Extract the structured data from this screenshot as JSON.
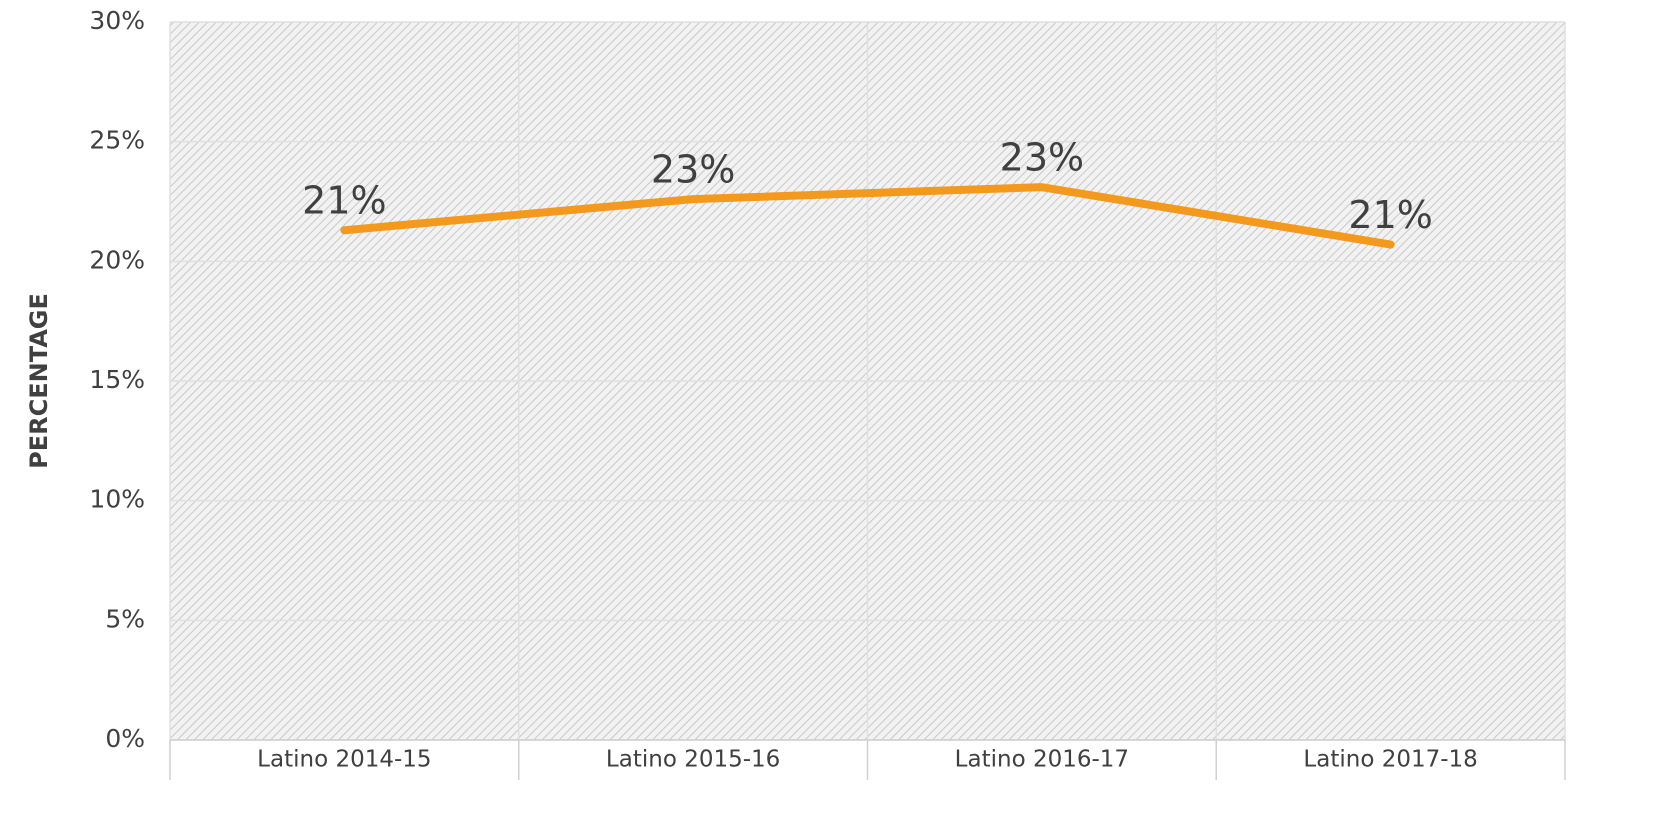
{
  "chart_data": {
    "type": "line",
    "y_axis_label": "PERCENTAGE",
    "categories": [
      "Latino 2014-15",
      "Latino 2015-16",
      "Latino 2016-17",
      "Latino 2017-18"
    ],
    "values": [
      21.3,
      22.6,
      23.1,
      20.7
    ],
    "value_labels": [
      "21%",
      "23%",
      "23%",
      "21%"
    ],
    "color": "#f39a1e",
    "ylim": [
      0,
      30
    ],
    "yticks": [
      {
        "value": 0,
        "label": "0%"
      },
      {
        "value": 5,
        "label": "5%"
      },
      {
        "value": 10,
        "label": "10%"
      },
      {
        "value": 15,
        "label": "15%"
      },
      {
        "value": 20,
        "label": "20%"
      },
      {
        "value": 25,
        "label": "25%"
      },
      {
        "value": 30,
        "label": "30%"
      }
    ],
    "grid": true
  }
}
